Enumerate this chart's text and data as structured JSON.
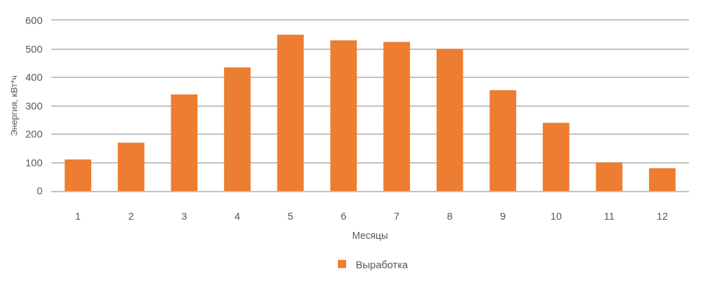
{
  "chart_data": {
    "type": "bar",
    "categories": [
      "1",
      "2",
      "3",
      "4",
      "5",
      "6",
      "7",
      "8",
      "9",
      "10",
      "11",
      "12"
    ],
    "series": [
      {
        "name": "Выработка",
        "color": "#ed7d31",
        "values": [
          111,
          170,
          340,
          435,
          550,
          530,
          525,
          500,
          355,
          240,
          100,
          80
        ]
      }
    ],
    "xlabel": "Месяцы",
    "ylabel": "Энергия, кВт*ч",
    "ylim": [
      0,
      600
    ],
    "yticks": [
      0,
      100,
      200,
      300,
      400,
      500,
      600
    ],
    "grid": "y",
    "legend": "bottom"
  }
}
